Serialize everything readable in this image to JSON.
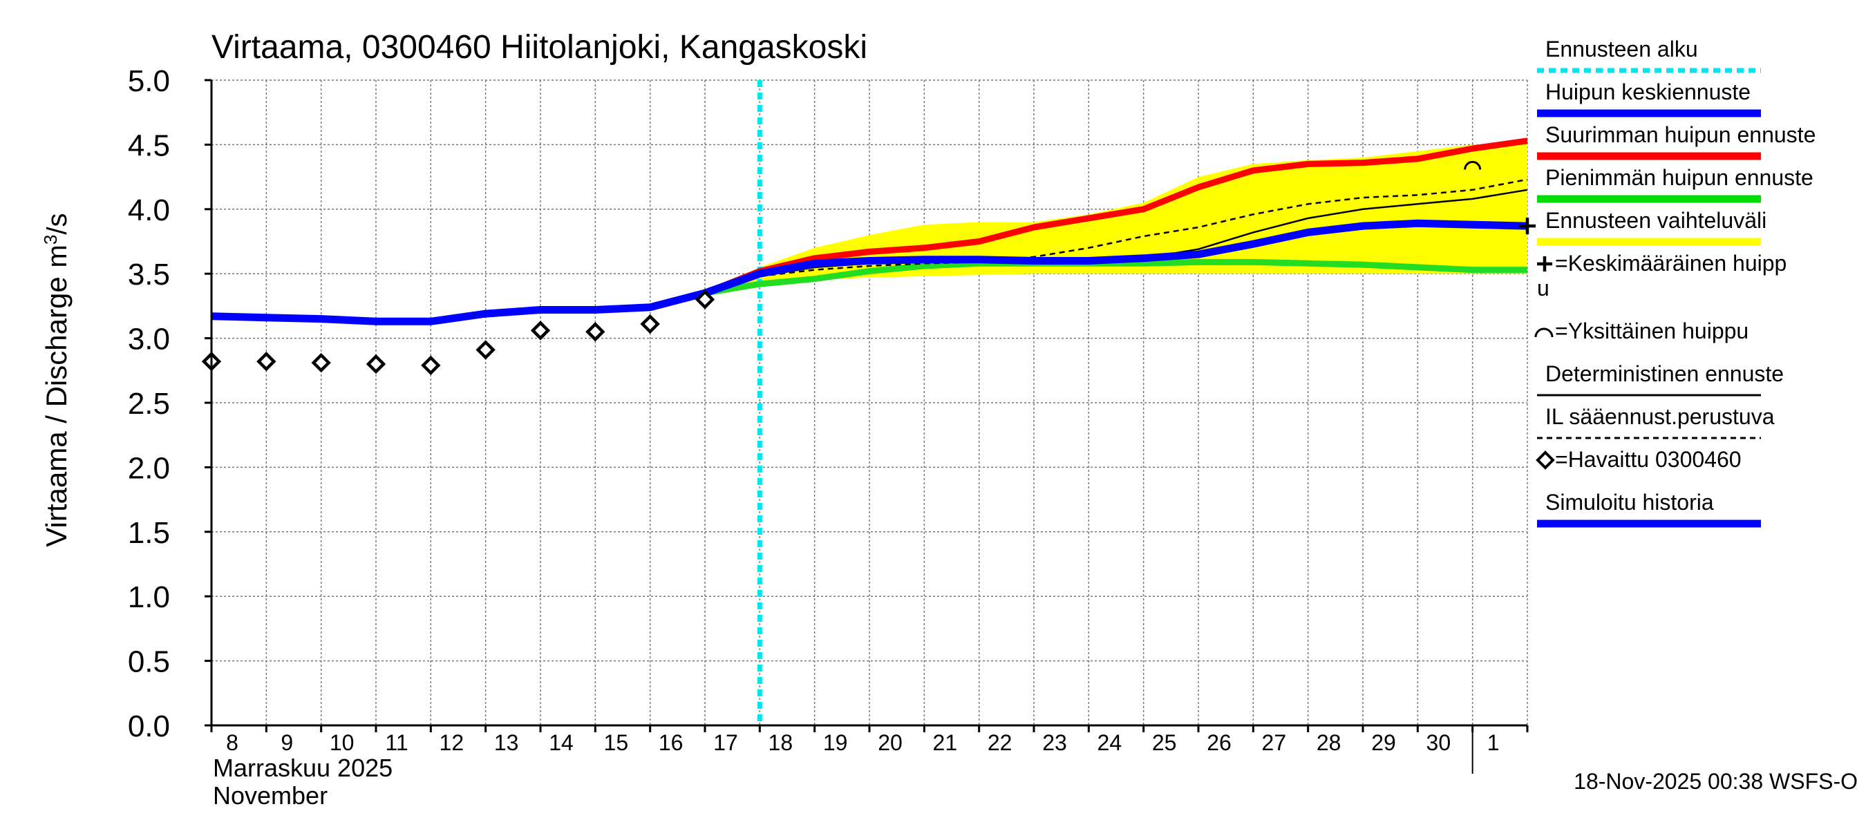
{
  "chart_data": {
    "type": "line",
    "title": "Virtaama, 0300460 Hiitolanjoki, Kangaskoski",
    "ylabel": "Virtaama / Discharge",
    "yunit_base": "m",
    "yunit_sup": "3",
    "yunit_tail": "/s",
    "ylim": [
      0.0,
      5.0
    ],
    "yticks": [
      "0.0",
      "0.5",
      "1.0",
      "1.5",
      "2.0",
      "2.5",
      "3.0",
      "3.5",
      "4.0",
      "4.5",
      "5.0"
    ],
    "xlim": [
      0,
      24
    ],
    "xticks": [
      "8",
      "9",
      "10",
      "11",
      "12",
      "13",
      "14",
      "15",
      "16",
      "17",
      "18",
      "19",
      "20",
      "21",
      "22",
      "23",
      "24",
      "25",
      "26",
      "27",
      "28",
      "29",
      "30",
      "1"
    ],
    "month_label_fi": "Marraskuu 2025",
    "month_label_en": "November",
    "footer": "18-Nov-2025 00:38 WSFS-O",
    "forecast_start_x": 10.0,
    "legend": [
      {
        "label": "Ennusteen alku",
        "color": "#00e5ee",
        "style": "dotted"
      },
      {
        "label": "Huipun keskiennuste",
        "color": "#0000ff",
        "style": "thick"
      },
      {
        "label": "Suurimman huipun ennuste",
        "color": "#ff0000",
        "style": "thick"
      },
      {
        "label": "Pienimmän huipun ennuste",
        "color": "#00dd00",
        "style": "thick"
      },
      {
        "label": "Ennusteen vaihteluväli",
        "color": "#ffff00",
        "style": "thick"
      },
      {
        "label_line1": "=Keskimääräinen huipp",
        "label_line2": "u",
        "color": "#000000",
        "style": "plus"
      },
      {
        "label": "=Yksittäinen huippu",
        "color": "#000000",
        "style": "arc"
      },
      {
        "label": "Deterministinen ennuste",
        "color": "#000000",
        "style": "thin"
      },
      {
        "label": "IL sääennust.perustuva",
        "color": "#000000",
        "style": "dashed"
      },
      {
        "label": "=Havaittu 0300460",
        "color": "#000000",
        "style": "diamond"
      },
      {
        "label": "Simuloitu historia",
        "color": "#0000ff",
        "style": "thick"
      }
    ],
    "series": {
      "simulated_history": {
        "x": [
          0,
          1,
          2,
          3,
          4,
          5,
          6,
          7,
          8,
          9,
          10
        ],
        "y": [
          3.17,
          3.16,
          3.15,
          3.13,
          3.13,
          3.19,
          3.22,
          3.22,
          3.24,
          3.35,
          3.5
        ]
      },
      "observed": {
        "x": [
          0,
          1,
          2,
          3,
          4,
          5,
          6,
          7,
          8,
          9
        ],
        "y": [
          2.82,
          2.82,
          2.81,
          2.8,
          2.79,
          2.91,
          3.06,
          3.05,
          3.11,
          3.3
        ]
      },
      "range_upper": {
        "x": [
          9,
          10,
          11,
          12,
          13,
          14,
          15,
          16,
          17,
          18,
          19,
          20,
          21,
          22,
          23,
          24
        ],
        "y": [
          3.35,
          3.55,
          3.7,
          3.8,
          3.88,
          3.9,
          3.9,
          3.96,
          4.05,
          4.25,
          4.35,
          4.38,
          4.4,
          4.45,
          4.5,
          4.52
        ]
      },
      "range_lower": {
        "x": [
          9,
          10,
          11,
          12,
          13,
          14,
          15,
          16,
          17,
          18,
          19,
          20,
          21,
          22,
          23,
          24
        ],
        "y": [
          3.35,
          3.42,
          3.45,
          3.47,
          3.48,
          3.49,
          3.5,
          3.5,
          3.5,
          3.5,
          3.5,
          3.5,
          3.5,
          3.5,
          3.5,
          3.5
        ]
      },
      "max_peak": {
        "x": [
          9,
          10,
          11,
          12,
          13,
          14,
          15,
          16,
          17,
          18,
          19,
          20,
          21,
          22,
          23,
          24
        ],
        "y": [
          3.35,
          3.52,
          3.62,
          3.67,
          3.7,
          3.75,
          3.86,
          3.93,
          4.0,
          4.17,
          4.3,
          4.35,
          4.36,
          4.39,
          4.47,
          4.53
        ]
      },
      "mean_peak": {
        "x": [
          9,
          10,
          11,
          12,
          13,
          14,
          15,
          16,
          17,
          18,
          19,
          20,
          21,
          22,
          23,
          24
        ],
        "y": [
          3.35,
          3.5,
          3.58,
          3.6,
          3.61,
          3.61,
          3.6,
          3.6,
          3.62,
          3.65,
          3.73,
          3.82,
          3.87,
          3.89,
          3.88,
          3.87
        ]
      },
      "min_peak": {
        "x": [
          9,
          10,
          11,
          12,
          13,
          14,
          15,
          16,
          17,
          18,
          19,
          20,
          21,
          22,
          23,
          24
        ],
        "y": [
          3.35,
          3.42,
          3.46,
          3.52,
          3.56,
          3.58,
          3.58,
          3.58,
          3.58,
          3.59,
          3.59,
          3.58,
          3.57,
          3.55,
          3.53,
          3.53
        ]
      },
      "deterministic": {
        "x": [
          9,
          10,
          11,
          12,
          13,
          14,
          15,
          16,
          17,
          18,
          19,
          20,
          21,
          22,
          23,
          24
        ],
        "y": [
          3.35,
          3.48,
          3.55,
          3.58,
          3.6,
          3.6,
          3.59,
          3.6,
          3.62,
          3.69,
          3.82,
          3.93,
          4.0,
          4.04,
          4.08,
          4.15
        ]
      },
      "il_weather": {
        "x": [
          9,
          10,
          11,
          12,
          13,
          14,
          15,
          16,
          17,
          18,
          19,
          20,
          21,
          22,
          23,
          24
        ],
        "y": [
          3.35,
          3.48,
          3.53,
          3.56,
          3.58,
          3.59,
          3.63,
          3.7,
          3.79,
          3.86,
          3.96,
          4.04,
          4.09,
          4.11,
          4.15,
          4.23
        ]
      },
      "single_peak": {
        "x": 23.0,
        "y": 4.35
      },
      "mean_peak_marker": {
        "x": 24.0,
        "y": 3.87
      }
    }
  }
}
